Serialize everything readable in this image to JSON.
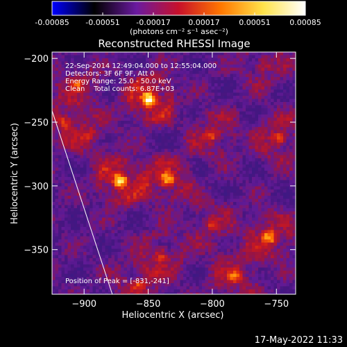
{
  "colorbar": {
    "ticks": [
      "-0.00085",
      "-0.00051",
      "-0.00017",
      "0.00017",
      "0.00051",
      "0.00085"
    ],
    "unit_label": "(photons cm⁻² s⁻¹ asec⁻²)",
    "range": [
      -0.00085,
      0.00085
    ],
    "colors": [
      "#0000ff",
      "#000000",
      "#6a1aa0",
      "#c8102a",
      "#ff7700",
      "#ffe34a",
      "#ffffff"
    ]
  },
  "chart_data": {
    "type": "heatmap",
    "title": "Reconstructed RHESSI Image",
    "xlabel": "Heliocentric X (arcsec)",
    "ylabel": "Heliocentric Y (arcsec)",
    "xlim": [
      -925,
      -735
    ],
    "ylim": [
      -385,
      -195
    ],
    "xticks": [
      {
        "value": -900,
        "label": "−900"
      },
      {
        "value": -850,
        "label": "−850"
      },
      {
        "value": -800,
        "label": "−800"
      },
      {
        "value": -750,
        "label": "−750"
      }
    ],
    "yticks": [
      {
        "value": -200,
        "label": "−200"
      },
      {
        "value": -250,
        "label": "−250"
      },
      {
        "value": -300,
        "label": "−300"
      },
      {
        "value": -350,
        "label": "−350"
      }
    ],
    "info_lines": [
      "22-Sep-2014 12:49:04.000 to 12:55:04.000",
      "Detectors: 3F 6F 9F, Att 0",
      "Energy Range: 25.0 - 50.0 keV",
      "Clean    Total counts: 6.87E+03"
    ],
    "peak_label": "Position of Peak = [-831,-241]",
    "peak": [
      -831,
      -241
    ],
    "limb_line": [
      [
        -926,
        -238
      ],
      [
        -878,
        -385
      ]
    ],
    "sources": [
      {
        "x": -849,
        "y": -232,
        "strength": 1.0
      },
      {
        "x": -872,
        "y": -296,
        "strength": 0.9
      },
      {
        "x": -835,
        "y": -295,
        "strength": 0.78
      },
      {
        "x": -748,
        "y": -263,
        "strength": 0.6
      },
      {
        "x": -755,
        "y": -340,
        "strength": 0.75
      },
      {
        "x": -782,
        "y": -370,
        "strength": 0.6
      },
      {
        "x": -800,
        "y": -260,
        "strength": 0.55
      },
      {
        "x": -840,
        "y": -355,
        "strength": 0.5
      },
      {
        "x": -905,
        "y": -220,
        "strength": 0.45
      },
      {
        "x": -915,
        "y": -250,
        "strength": 0.5
      },
      {
        "x": -858,
        "y": -378,
        "strength": 0.5
      },
      {
        "x": -800,
        "y": -330,
        "strength": 0.45
      },
      {
        "x": -895,
        "y": -260,
        "strength": 0.35
      },
      {
        "x": -760,
        "y": -205,
        "strength": 0.4
      }
    ]
  },
  "timestamp": "17-May-2022 11:33"
}
